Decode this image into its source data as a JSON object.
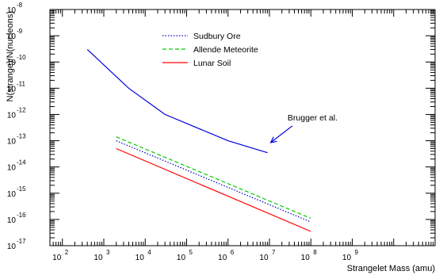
{
  "chart_data": {
    "type": "line",
    "xscale": "log",
    "yscale": "log",
    "xlim": [
      50,
      100000000000
    ],
    "ylim": [
      1e-17,
      1e-08
    ],
    "xlabel": "Strangelet Mass (amu)",
    "ylabel": "N(strange)/N(nucleons)",
    "x_ticks": [
      {
        "base": "10",
        "exp": "2",
        "value": 100
      },
      {
        "base": "10",
        "exp": "3",
        "value": 1000
      },
      {
        "base": "10",
        "exp": "4",
        "value": 10000
      },
      {
        "base": "10",
        "exp": "5",
        "value": 100000
      },
      {
        "base": "10",
        "exp": "6",
        "value": 1000000
      },
      {
        "base": "10",
        "exp": "7",
        "value": 10000000
      },
      {
        "base": "10",
        "exp": "8",
        "value": 100000000
      },
      {
        "base": "10",
        "exp": "9",
        "value": 1000000000
      }
    ],
    "y_ticks": [
      {
        "base": "10",
        "exp": "-17",
        "value": 1e-17
      },
      {
        "base": "10",
        "exp": "-16",
        "value": 1e-16
      },
      {
        "base": "10",
        "exp": "-15",
        "value": 1e-15
      },
      {
        "base": "10",
        "exp": "-14",
        "value": 1e-14
      },
      {
        "base": "10",
        "exp": "-13",
        "value": 1e-13
      },
      {
        "base": "10",
        "exp": "-12",
        "value": 1e-12
      },
      {
        "base": "10",
        "exp": "-11",
        "value": 1e-11
      },
      {
        "base": "10",
        "exp": "-10",
        "value": 1e-10
      },
      {
        "base": "10",
        "exp": "-9",
        "value": 1e-09
      },
      {
        "base": "10",
        "exp": "-8",
        "value": 1e-08
      }
    ],
    "series": [
      {
        "name": "Sudbury Ore",
        "color": "#0000cc",
        "style": "dotted",
        "legend": true,
        "x": [
          2000,
          100000000
        ],
        "y": [
          1e-13,
          8e-17
        ]
      },
      {
        "name": "Allende Meteorite",
        "color": "#00cc00",
        "style": "dashed",
        "legend": true,
        "x": [
          2000,
          100000000
        ],
        "y": [
          1.4e-13,
          1.1e-16
        ]
      },
      {
        "name": "Lunar Soil",
        "color": "#ff0000",
        "style": "solid",
        "legend": true,
        "x": [
          2000,
          100000000
        ],
        "y": [
          5e-14,
          3.5e-17
        ]
      },
      {
        "name": "Brugger et al.",
        "color": "#0000dd",
        "style": "solid",
        "legend": false,
        "x": [
          400,
          4000,
          30000,
          1000000,
          9000000
        ],
        "y": [
          3e-10,
          1e-11,
          1e-12,
          1e-13,
          3.5e-14
        ]
      }
    ],
    "annotations": [
      {
        "text": "Brugger et al.",
        "x": 30000000,
        "y": 6e-13,
        "arrow_to": {
          "x": 9000000,
          "y": 6e-14
        }
      }
    ],
    "legend_position": "top-center"
  }
}
